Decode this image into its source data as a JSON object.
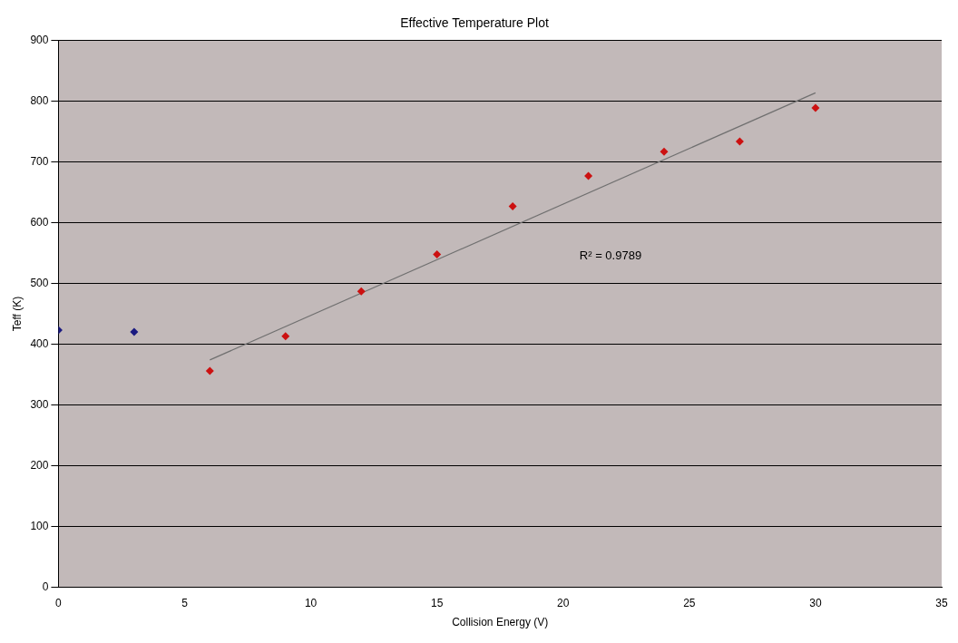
{
  "chart_data": {
    "type": "scatter",
    "title": "Effective Temperature Plot",
    "xlabel": "Collision Energy (V)",
    "ylabel": "Teff (K)",
    "series": [
      {
        "color": "#1a1a80",
        "x": [
          0,
          3
        ],
        "values": [
          423,
          420
        ]
      },
      {
        "color": "#cc1111",
        "x": [
          6,
          9,
          12,
          15,
          18,
          21,
          24,
          27,
          30
        ],
        "values": [
          356,
          413,
          487,
          548,
          627,
          677,
          717,
          734,
          789
        ]
      },
      {
        "type": "line",
        "marker": "none",
        "color": "#707070",
        "x": [
          6,
          30
        ],
        "values": [
          374,
          814
        ]
      }
    ],
    "xlim": [
      0,
      35
    ],
    "xticks": [
      0,
      5,
      10,
      15,
      20,
      25,
      30,
      35
    ],
    "ylim": [
      0,
      900
    ],
    "yticks": [
      0,
      100,
      200,
      300,
      400,
      500,
      600,
      700,
      800,
      900
    ],
    "grid": "y",
    "legend": false,
    "marker": "diamond",
    "annotations": [
      "R² = 0.9789"
    ]
  }
}
